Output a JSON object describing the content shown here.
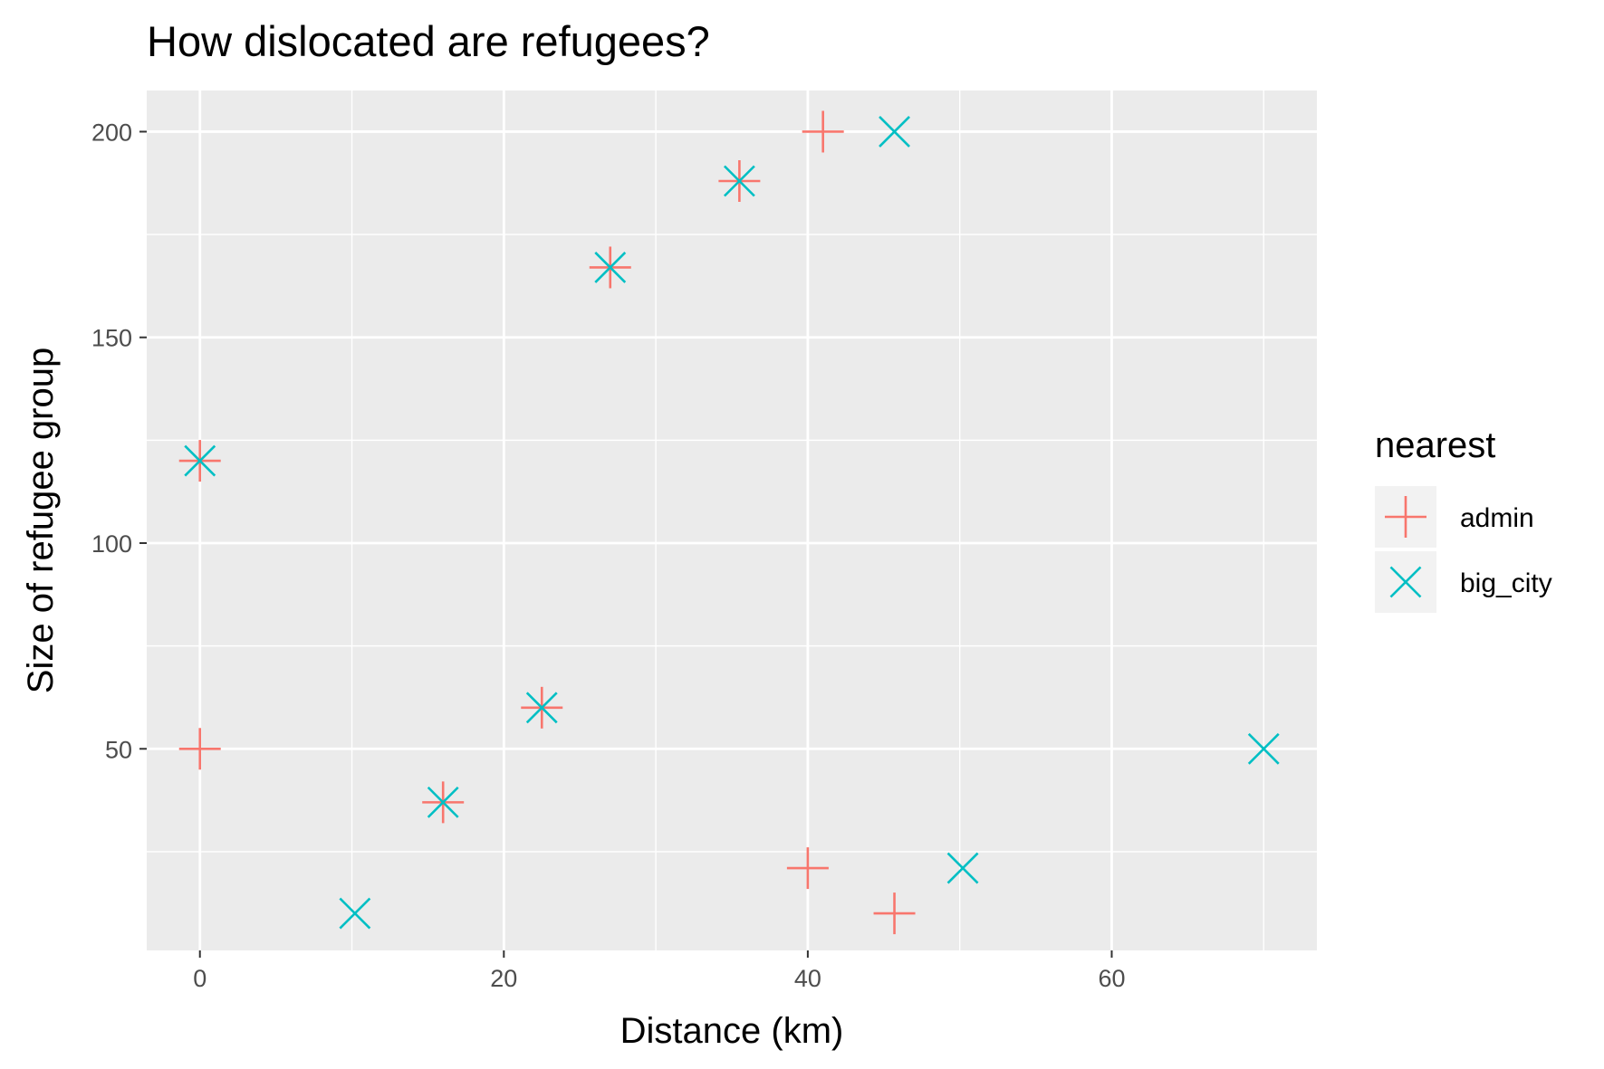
{
  "chart_data": {
    "type": "scatter",
    "title": "How dislocated are refugees?",
    "xlabel": "Distance (km)",
    "ylabel": "Size of refugee group",
    "xlim": [
      -3.5,
      73.5
    ],
    "ylim": [
      1,
      210
    ],
    "xticks": [
      0,
      20,
      40,
      60
    ],
    "xtick_labels": [
      "0",
      "20",
      "40",
      "60"
    ],
    "yticks": [
      50,
      100,
      150,
      200
    ],
    "ytick_labels": [
      "50",
      "100",
      "150",
      "200"
    ],
    "grid": true,
    "legend": {
      "title": "nearest",
      "position": "right",
      "entries": [
        "admin",
        "big_city"
      ]
    },
    "series": [
      {
        "name": "admin",
        "color": "#F8766D",
        "shape": "plus",
        "points": [
          {
            "x": 0,
            "y": 50
          },
          {
            "x": 0,
            "y": 120
          },
          {
            "x": 16,
            "y": 37
          },
          {
            "x": 22.5,
            "y": 60
          },
          {
            "x": 27,
            "y": 167
          },
          {
            "x": 35.5,
            "y": 188
          },
          {
            "x": 41,
            "y": 200
          },
          {
            "x": 40,
            "y": 21
          },
          {
            "x": 45.7,
            "y": 10
          }
        ]
      },
      {
        "name": "big_city",
        "color": "#00BFC4",
        "shape": "cross",
        "points": [
          {
            "x": 0,
            "y": 120
          },
          {
            "x": 10.2,
            "y": 10
          },
          {
            "x": 16,
            "y": 37
          },
          {
            "x": 22.5,
            "y": 60
          },
          {
            "x": 27,
            "y": 167
          },
          {
            "x": 35.5,
            "y": 188
          },
          {
            "x": 45.7,
            "y": 200
          },
          {
            "x": 50.2,
            "y": 21
          },
          {
            "x": 70,
            "y": 50
          }
        ]
      }
    ]
  }
}
